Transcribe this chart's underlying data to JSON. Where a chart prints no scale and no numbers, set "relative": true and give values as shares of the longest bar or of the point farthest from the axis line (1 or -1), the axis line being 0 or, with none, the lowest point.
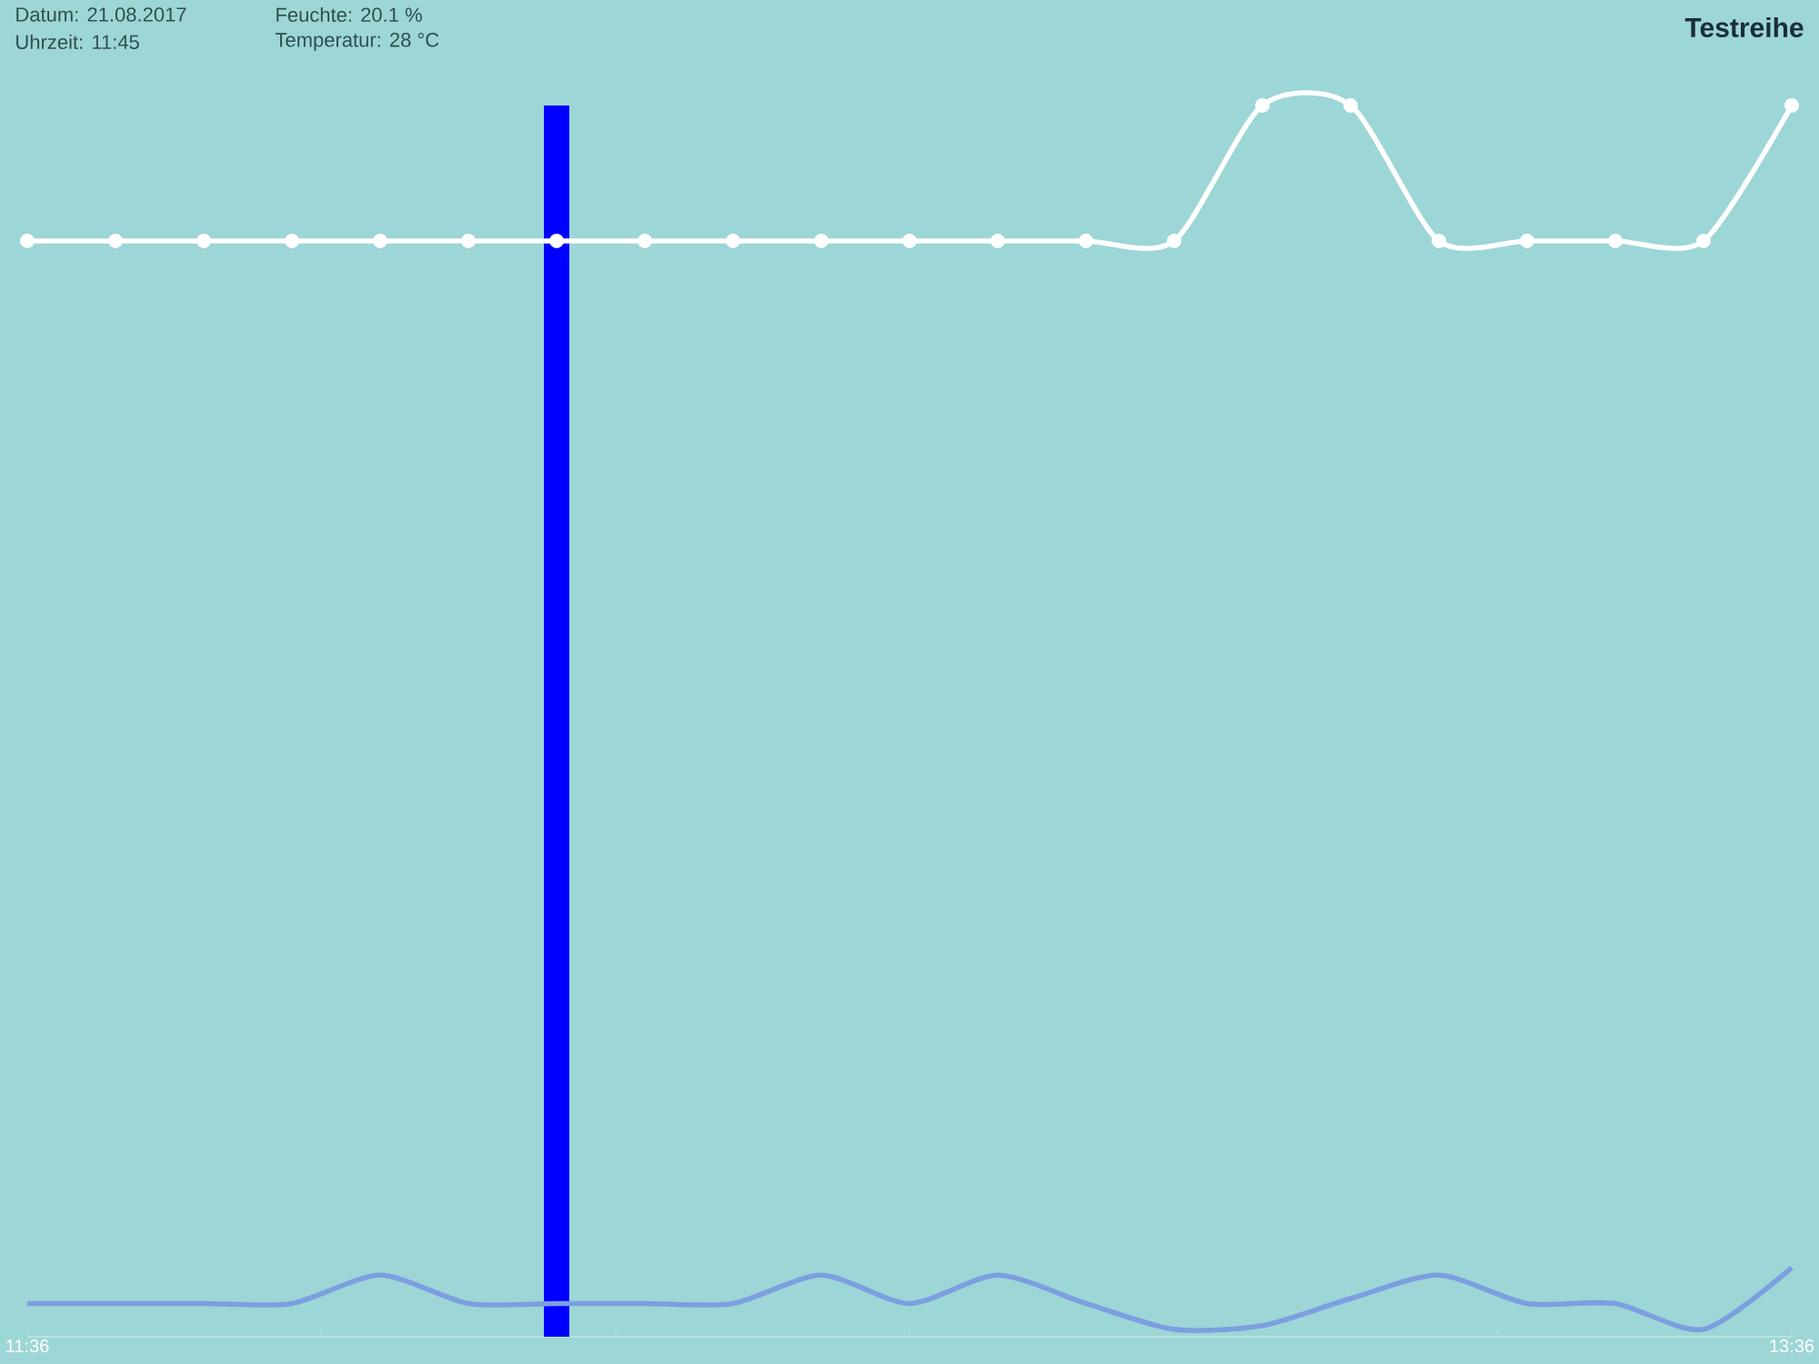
{
  "chart_data": {
    "type": "line",
    "title": "Testreihe",
    "relative": true,
    "annotations": [
      "Datum: 21.08.2017",
      "Uhrzeit: 11:45",
      "Feuchte: 20.1 %",
      "Temperatur: 28 °C"
    ],
    "x": [
      11.6,
      11.7,
      11.8,
      11.9,
      12.0,
      12.1,
      12.2,
      12.3,
      12.4,
      12.5,
      12.6,
      12.7,
      12.8,
      12.9,
      13.0,
      13.1,
      13.2,
      13.3,
      13.4,
      13.5,
      13.6
    ],
    "xlim": [
      11.6,
      13.6
    ],
    "xticks": [
      {
        "value": 11.6,
        "label": "11:36"
      },
      {
        "value": 11.933,
        "label": null
      },
      {
        "value": 12.267,
        "label": null
      },
      {
        "value": 12.6,
        "label": null
      },
      {
        "value": 12.933,
        "label": null
      },
      {
        "value": 13.267,
        "label": null
      },
      {
        "value": 13.6,
        "label": "13:36"
      }
    ],
    "series": [
      {
        "color": "#ffffff",
        "marker": "circle",
        "values": [
          0.89,
          0.89,
          0.89,
          0.89,
          0.89,
          0.89,
          0.89,
          0.89,
          0.89,
          0.89,
          0.89,
          0.89,
          0.89,
          0.89,
          1,
          1,
          0.89,
          0.89,
          0.89,
          0.89,
          1
        ]
      },
      {
        "color": "#7b9fe0",
        "values": [
          0.027,
          0.027,
          0.027,
          0.027,
          0.05,
          0.027,
          0.027,
          0.027,
          0.027,
          0.05,
          0.027,
          0.05,
          0.027,
          0.006,
          0.009,
          0.031,
          0.05,
          0.027,
          0.027,
          0.006,
          0.056
        ]
      }
    ],
    "ref_lines": [
      {
        "axis": "x",
        "value": 12.2,
        "color": "#0000ff"
      }
    ],
    "grid": false
  }
}
